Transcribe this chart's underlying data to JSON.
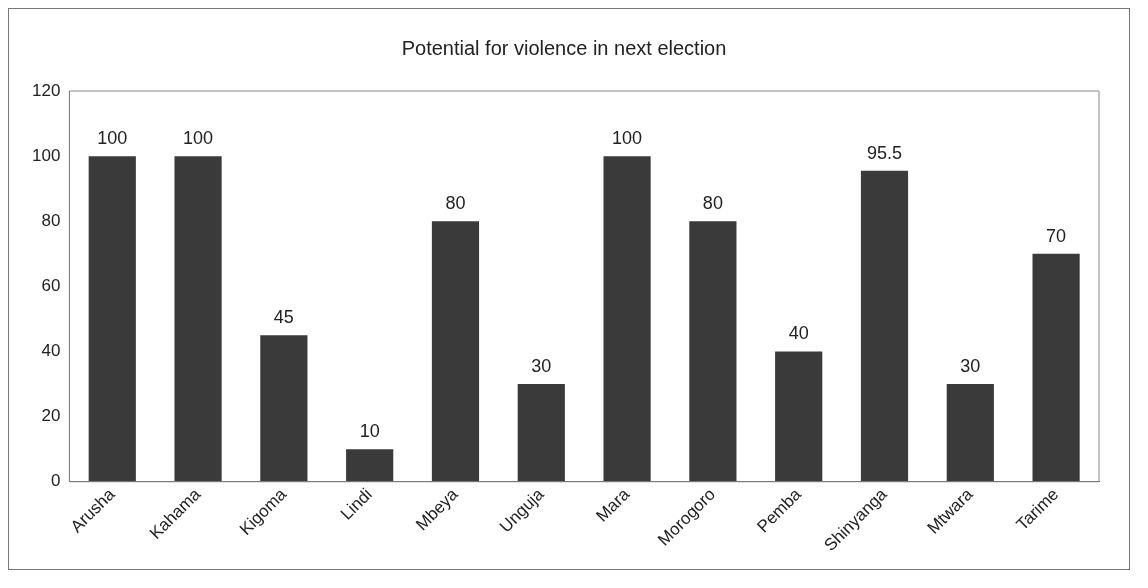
{
  "chart_data": {
    "type": "bar",
    "title": "Potential for violence in next election",
    "categories": [
      "Arusha",
      "Kahama",
      "Kigoma",
      "Lindi",
      "Mbeya",
      "Unguja",
      "Mara",
      "Morogoro",
      "Pemba",
      "Shinyanga",
      "Mtwara",
      "Tarime"
    ],
    "values": [
      100,
      100,
      45,
      10,
      80,
      30,
      100,
      80,
      40,
      95.5,
      30,
      70
    ],
    "color": "#3a3a3a",
    "ylim": [
      0,
      120
    ],
    "yticks": [
      0,
      20,
      40,
      60,
      80,
      100,
      120
    ],
    "grid": false,
    "data_labels": true
  }
}
